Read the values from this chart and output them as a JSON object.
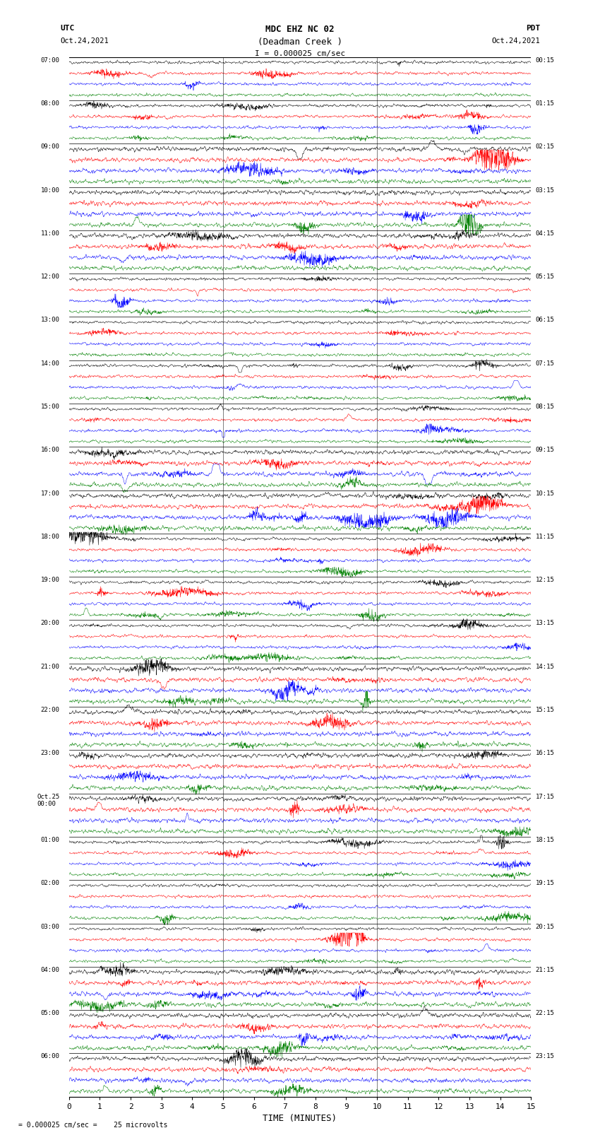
{
  "title_line1": "MDC EHZ NC 02",
  "title_line2": "(Deadman Creek )",
  "scale_text": "I = 0.000025 cm/sec",
  "bottom_label": "= 0.000025 cm/sec =    25 microvolts",
  "xlabel": "TIME (MINUTES)",
  "utc_labels": [
    "07:00",
    "08:00",
    "09:00",
    "10:00",
    "11:00",
    "12:00",
    "13:00",
    "14:00",
    "15:00",
    "16:00",
    "17:00",
    "18:00",
    "19:00",
    "20:00",
    "21:00",
    "22:00",
    "23:00",
    "Oct.25\n00:00",
    "01:00",
    "02:00",
    "03:00",
    "04:00",
    "05:00",
    "06:00"
  ],
  "pdt_labels": [
    "00:15",
    "01:15",
    "02:15",
    "03:15",
    "04:15",
    "05:15",
    "06:15",
    "07:15",
    "08:15",
    "09:15",
    "10:15",
    "11:15",
    "12:15",
    "13:15",
    "14:15",
    "15:15",
    "16:15",
    "17:15",
    "18:15",
    "19:15",
    "20:15",
    "21:15",
    "22:15",
    "23:15"
  ],
  "colors": [
    "black",
    "red",
    "blue",
    "green"
  ],
  "n_hours": 24,
  "traces_per_hour": 4,
  "xmin": 0,
  "xmax": 15,
  "xticks": [
    0,
    1,
    2,
    3,
    4,
    5,
    6,
    7,
    8,
    9,
    10,
    11,
    12,
    13,
    14,
    15
  ],
  "vlines": [
    5,
    10
  ],
  "background_color": "white",
  "base_noise": 0.06,
  "base_amp": 0.25,
  "seed": 42,
  "lw": 0.35
}
